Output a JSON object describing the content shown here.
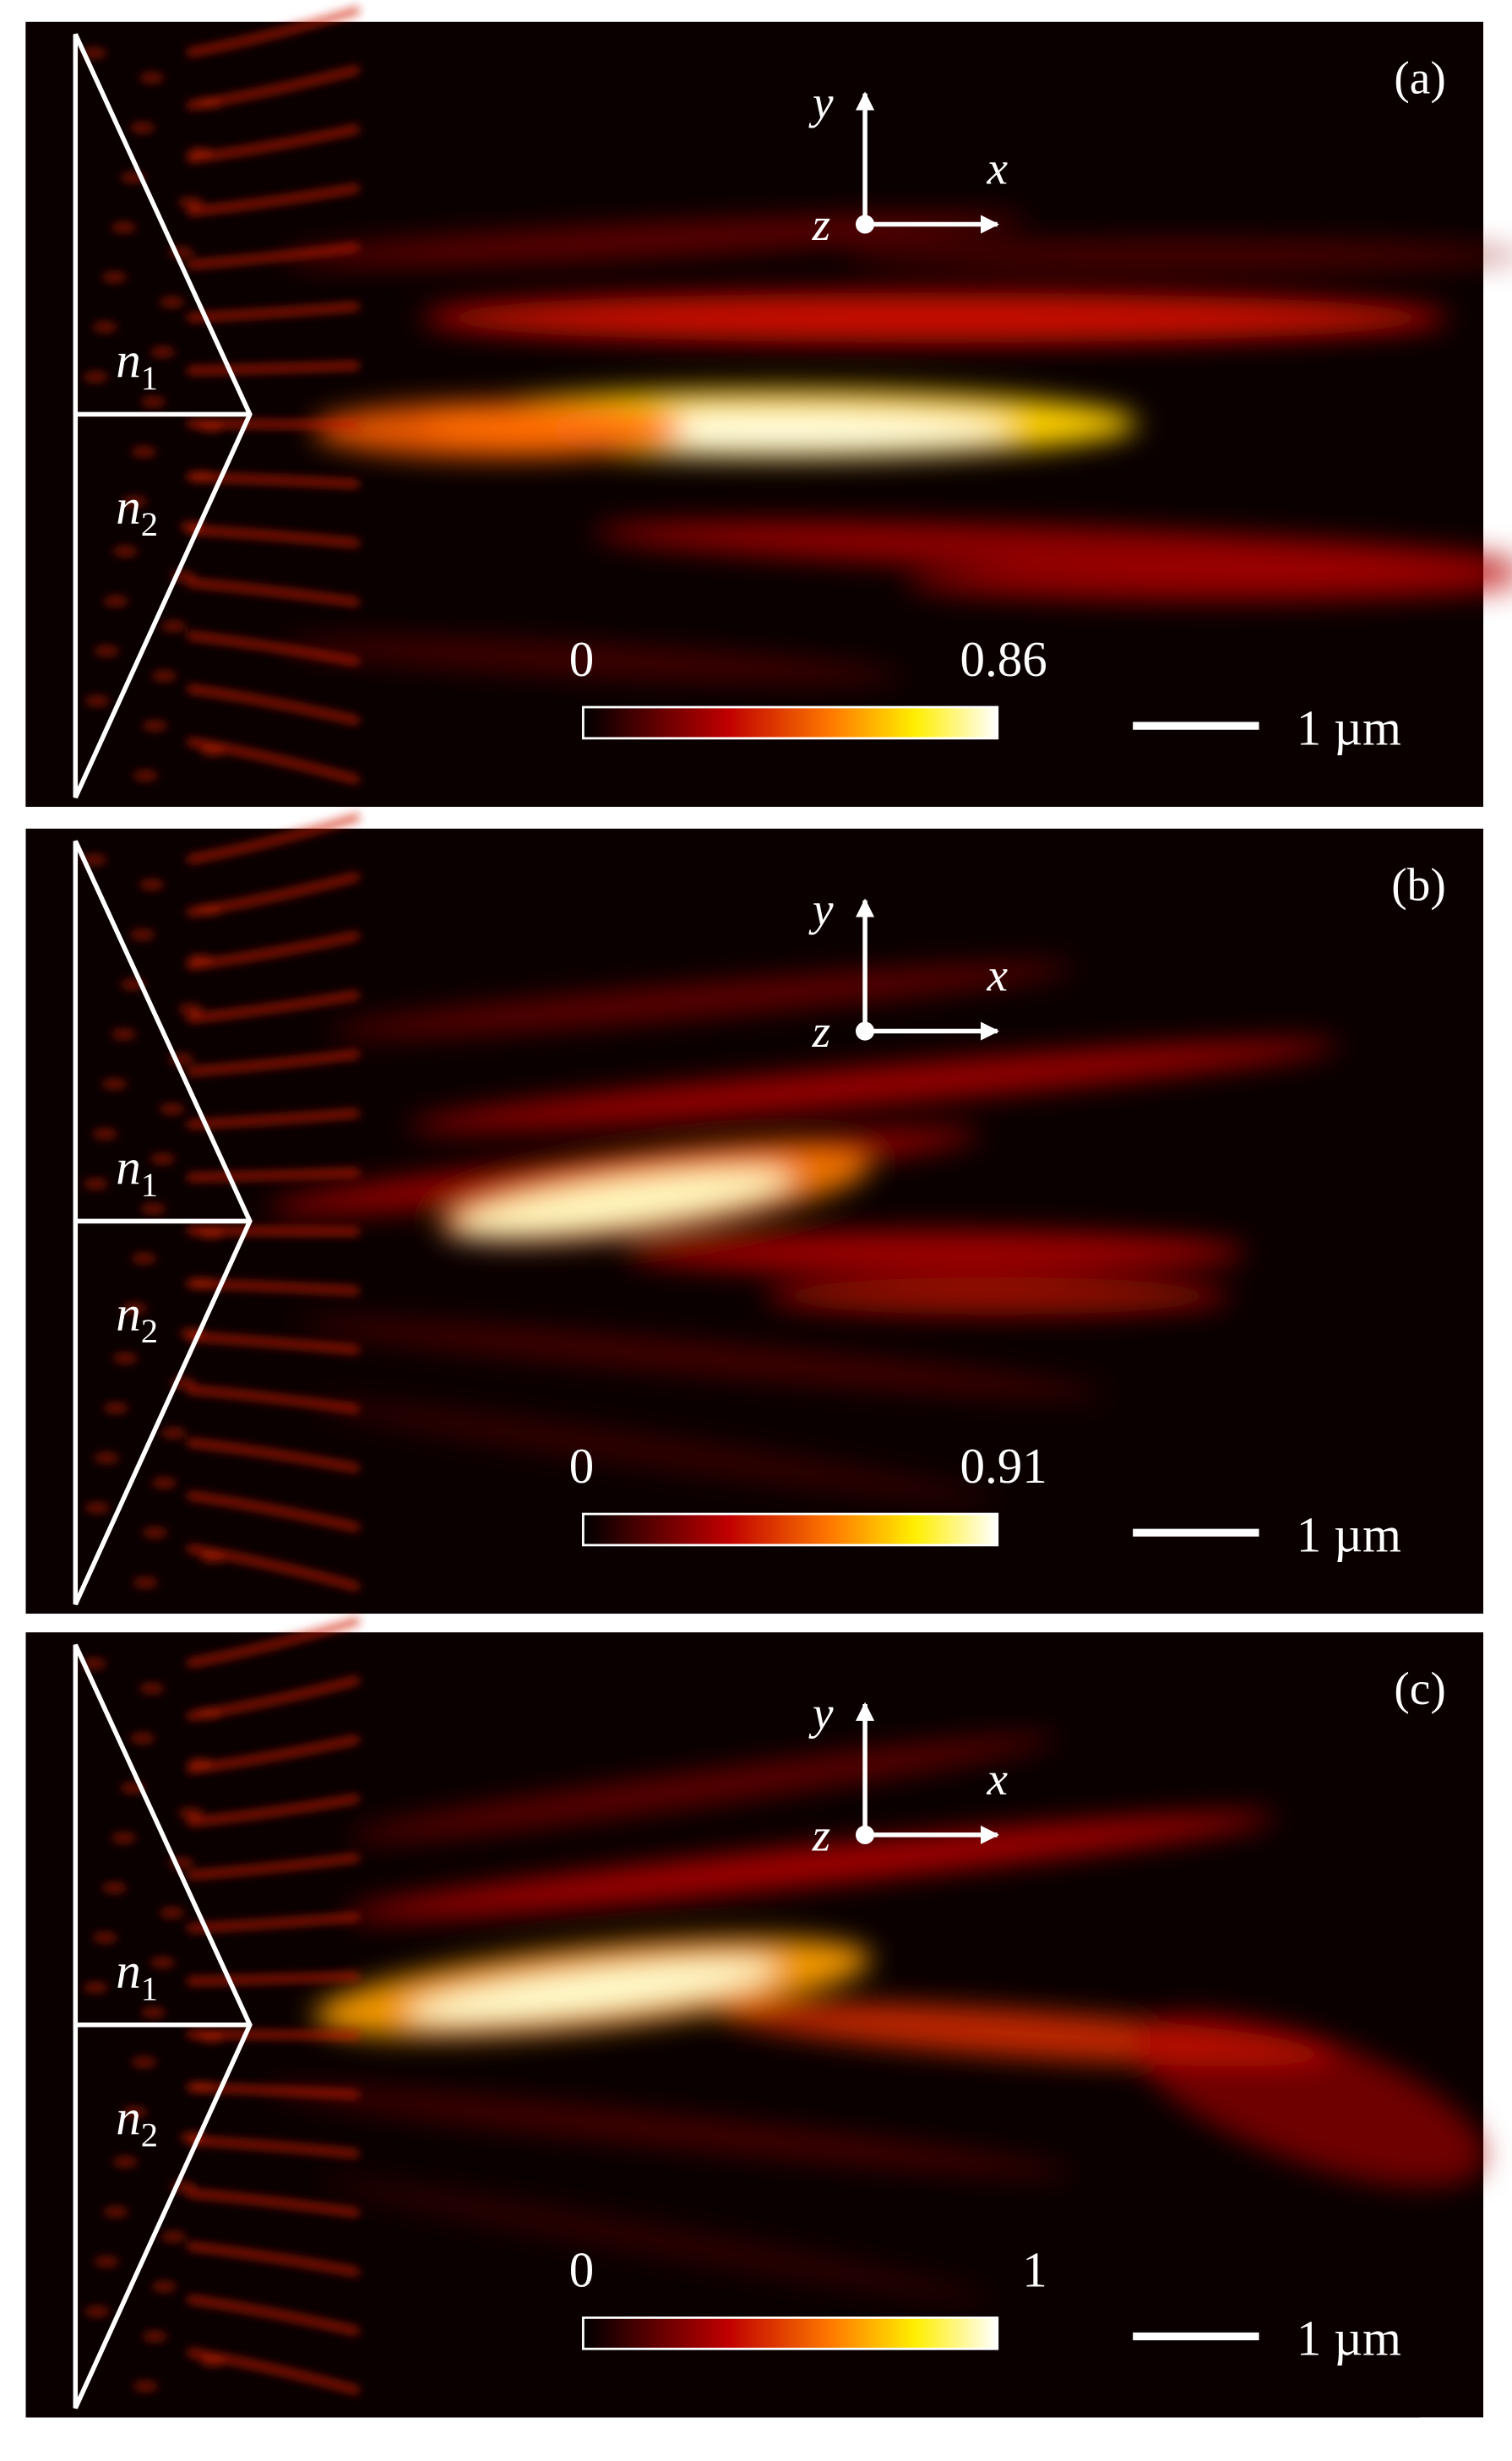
{
  "panels": [
    {
      "label": "(a)",
      "axes": {
        "y": "y",
        "x": "x",
        "z": "z"
      },
      "regions": [
        {
          "symbol": "n",
          "subscript": "1"
        },
        {
          "symbol": "n",
          "subscript": "2"
        }
      ],
      "colorbar": {
        "min": 0,
        "max": 0.86
      },
      "scale_bar": "1 µm"
    },
    {
      "label": "(b)",
      "axes": {
        "y": "y",
        "x": "x",
        "z": "z"
      },
      "regions": [
        {
          "symbol": "n",
          "subscript": "1"
        },
        {
          "symbol": "n",
          "subscript": "2"
        }
      ],
      "colorbar": {
        "min": 0,
        "max": 0.91
      },
      "scale_bar": "1 µm"
    },
    {
      "label": "(c)",
      "axes": {
        "y": "y",
        "x": "x",
        "z": "z"
      },
      "regions": [
        {
          "symbol": "n",
          "subscript": "1"
        },
        {
          "symbol": "n",
          "subscript": "2"
        }
      ],
      "colorbar": {
        "min": 0,
        "max": 1
      },
      "scale_bar": "1 µm"
    }
  ]
}
